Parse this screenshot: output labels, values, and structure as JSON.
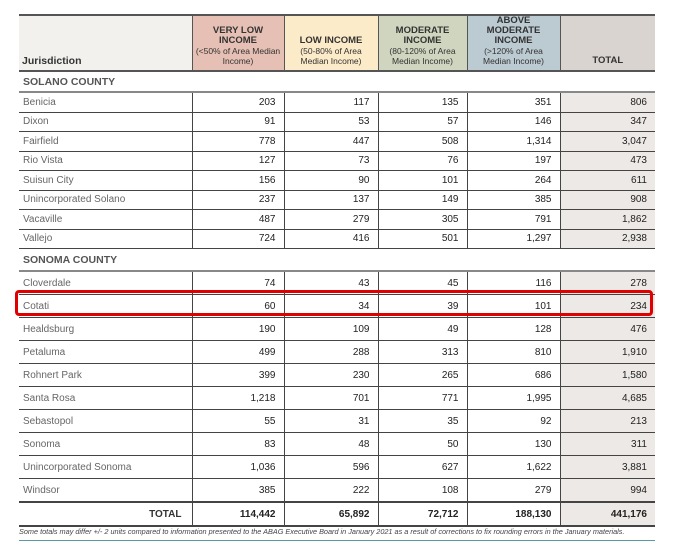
{
  "headers": {
    "jurisdiction": "Jurisdiction",
    "vli": "VERY LOW INCOME",
    "vli_sub": "(<50% of Area Median Income)",
    "li": "LOW INCOME",
    "li_sub": "(50-80% of Area Median Income)",
    "mod": "MODERATE INCOME",
    "mod_sub": "(80-120% of Area Median Income)",
    "abm": "ABOVE MODERATE INCOME",
    "abm_sub": "(>120% of Area Median Income)",
    "total": "TOTAL"
  },
  "sections": [
    {
      "title": "SOLANO COUNTY",
      "rows": [
        [
          "Benicia",
          "203",
          "117",
          "135",
          "351",
          "806"
        ],
        [
          "Dixon",
          "91",
          "53",
          "57",
          "146",
          "347"
        ],
        [
          "Fairfield",
          "778",
          "447",
          "508",
          "1,314",
          "3,047"
        ],
        [
          "Rio Vista",
          "127",
          "73",
          "76",
          "197",
          "473"
        ],
        [
          "Suisun City",
          "156",
          "90",
          "101",
          "264",
          "611"
        ],
        [
          "Unincorporated Solano",
          "237",
          "137",
          "149",
          "385",
          "908"
        ],
        [
          "Vacaville",
          "487",
          "279",
          "305",
          "791",
          "1,862"
        ],
        [
          "Vallejo",
          "724",
          "416",
          "501",
          "1,297",
          "2,938"
        ]
      ]
    },
    {
      "title": "SONOMA COUNTY",
      "rows": [
        [
          "Cloverdale",
          "74",
          "43",
          "45",
          "116",
          "278"
        ],
        [
          "Cotati",
          "60",
          "34",
          "39",
          "101",
          "234"
        ],
        [
          "Healdsburg",
          "190",
          "109",
          "49",
          "128",
          "476"
        ],
        [
          "Petaluma",
          "499",
          "288",
          "313",
          "810",
          "1,910"
        ],
        [
          "Rohnert Park",
          "399",
          "230",
          "265",
          "686",
          "1,580"
        ],
        [
          "Santa Rosa",
          "1,218",
          "701",
          "771",
          "1,995",
          "4,685"
        ],
        [
          "Sebastopol",
          "55",
          "31",
          "35",
          "92",
          "213"
        ],
        [
          "Sonoma",
          "83",
          "48",
          "50",
          "130",
          "311"
        ],
        [
          "Unincorporated Sonoma",
          "1,036",
          "596",
          "627",
          "1,622",
          "3,881"
        ],
        [
          "Windsor",
          "385",
          "222",
          "108",
          "279",
          "994"
        ]
      ]
    }
  ],
  "total_row": [
    "TOTAL",
    "114,442",
    "65,892",
    "72,712",
    "188,130",
    "441,176"
  ],
  "highlighted_row": "Cotati",
  "footnote": "Some totals may differ +/- 2 units compared to information presented to the ABAG Executive Board in January 2021 as a result of corrections to fix rounding errors in the January materials."
}
